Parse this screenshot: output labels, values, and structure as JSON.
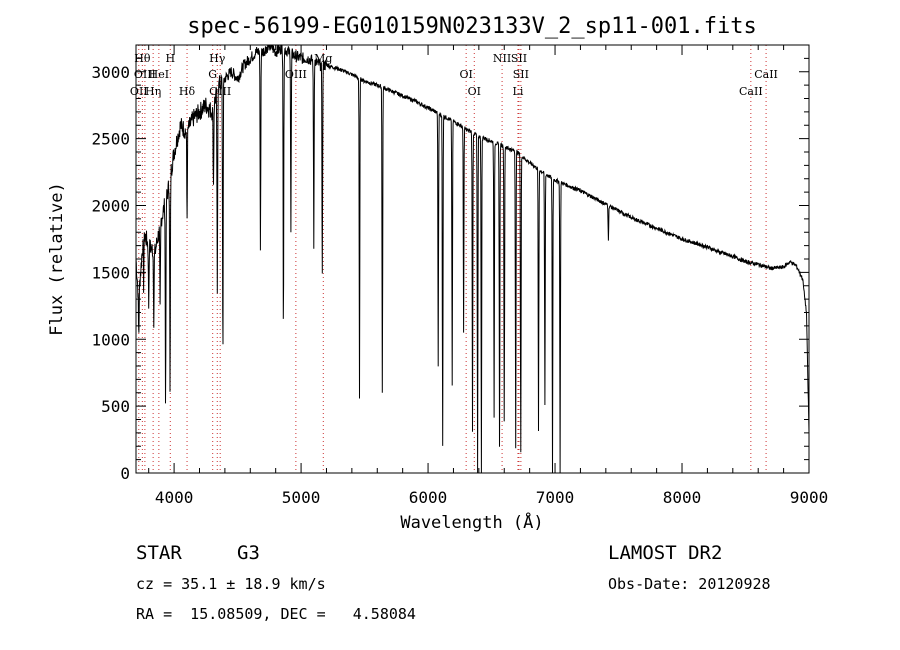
{
  "chart_data": {
    "type": "line",
    "title": "spec-56199-EG010159N023133V_2_sp11-001.fits",
    "xlabel": "Wavelength (Å)",
    "ylabel": "Flux (relative)",
    "xlim": [
      3700,
      9000
    ],
    "ylim": [
      0,
      3200
    ],
    "xticks": [
      4000,
      5000,
      6000,
      7000,
      8000,
      9000
    ],
    "yticks": [
      0,
      500,
      1000,
      1500,
      2000,
      2500,
      3000
    ],
    "xtick_labels": [
      "4000",
      "5000",
      "6000",
      "7000",
      "8000",
      "9000"
    ],
    "ytick_labels": [
      "0",
      "500",
      "1000",
      "1500",
      "2000",
      "2500",
      "3000"
    ],
    "grid": false,
    "continuum": [
      [
        3700,
        1600
      ],
      [
        3720,
        1300
      ],
      [
        3760,
        1800
      ],
      [
        3800,
        1700
      ],
      [
        3850,
        1650
      ],
      [
        3900,
        1900
      ],
      [
        3950,
        2100
      ],
      [
        4000,
        2400
      ],
      [
        4050,
        2600
      ],
      [
        4100,
        2550
      ],
      [
        4150,
        2650
      ],
      [
        4200,
        2700
      ],
      [
        4250,
        2750
      ],
      [
        4300,
        2700
      ],
      [
        4350,
        2900
      ],
      [
        4400,
        2950
      ],
      [
        4450,
        3000
      ],
      [
        4500,
        2950
      ],
      [
        4550,
        3050
      ],
      [
        4600,
        3100
      ],
      [
        4650,
        3150
      ],
      [
        4700,
        3150
      ],
      [
        4750,
        3200
      ],
      [
        4800,
        3150
      ],
      [
        4850,
        3180
      ],
      [
        4900,
        3150
      ],
      [
        4950,
        3120
      ],
      [
        5000,
        3100
      ],
      [
        5050,
        3100
      ],
      [
        5100,
        3080
      ],
      [
        5150,
        3050
      ],
      [
        5200,
        3050
      ],
      [
        5300,
        3020
      ],
      [
        5400,
        2980
      ],
      [
        5500,
        2930
      ],
      [
        5600,
        2900
      ],
      [
        5700,
        2860
      ],
      [
        5800,
        2820
      ],
      [
        5900,
        2780
      ],
      [
        6000,
        2730
      ],
      [
        6100,
        2680
      ],
      [
        6200,
        2630
      ],
      [
        6300,
        2570
      ],
      [
        6400,
        2520
      ],
      [
        6500,
        2480
      ],
      [
        6600,
        2440
      ],
      [
        6700,
        2400
      ],
      [
        6800,
        2320
      ],
      [
        6900,
        2250
      ],
      [
        7000,
        2190
      ],
      [
        7100,
        2150
      ],
      [
        7200,
        2110
      ],
      [
        7300,
        2060
      ],
      [
        7400,
        2010
      ],
      [
        7500,
        1960
      ],
      [
        7600,
        1910
      ],
      [
        7700,
        1870
      ],
      [
        7800,
        1830
      ],
      [
        7900,
        1790
      ],
      [
        8000,
        1750
      ],
      [
        8100,
        1720
      ],
      [
        8200,
        1690
      ],
      [
        8300,
        1650
      ],
      [
        8400,
        1620
      ],
      [
        8500,
        1580
      ],
      [
        8600,
        1560
      ],
      [
        8700,
        1530
      ],
      [
        8800,
        1540
      ],
      [
        8850,
        1580
      ],
      [
        8900,
        1550
      ],
      [
        8950,
        1450
      ],
      [
        8980,
        1200
      ],
      [
        9000,
        300
      ]
    ],
    "absorption_lines": [
      {
        "x": 3722,
        "min": 1050
      },
      {
        "x": 3760,
        "min": 1400
      },
      {
        "x": 3800,
        "min": 1250
      },
      {
        "x": 3840,
        "min": 1150
      },
      {
        "x": 3890,
        "min": 1200
      },
      {
        "x": 3933,
        "min": 500
      },
      {
        "x": 3968,
        "min": 550
      },
      {
        "x": 4102,
        "min": 1900
      },
      {
        "x": 4310,
        "min": 2150
      },
      {
        "x": 4340,
        "min": 1300
      },
      {
        "x": 4384,
        "min": 850
      },
      {
        "x": 4680,
        "min": 1700
      },
      {
        "x": 4861,
        "min": 1000
      },
      {
        "x": 4920,
        "min": 1800
      },
      {
        "x": 5100,
        "min": 1700
      },
      {
        "x": 5167,
        "min": 1500
      },
      {
        "x": 5460,
        "min": 550
      },
      {
        "x": 5640,
        "min": 600
      },
      {
        "x": 6080,
        "min": 800
      },
      {
        "x": 6115,
        "min": 200
      },
      {
        "x": 6190,
        "min": 650
      },
      {
        "x": 6280,
        "min": 1050
      },
      {
        "x": 6350,
        "min": 300
      },
      {
        "x": 6390,
        "min": 0
      },
      {
        "x": 6420,
        "min": 0
      },
      {
        "x": 6520,
        "min": 400
      },
      {
        "x": 6563,
        "min": 150
      },
      {
        "x": 6600,
        "min": 400
      },
      {
        "x": 6690,
        "min": 200
      },
      {
        "x": 6730,
        "min": 150
      },
      {
        "x": 6870,
        "min": 300
      },
      {
        "x": 6920,
        "min": 500
      },
      {
        "x": 6980,
        "min": 0
      },
      {
        "x": 7040,
        "min": 0
      },
      {
        "x": 7420,
        "min": 1750
      }
    ],
    "marker_lines": [
      {
        "x": 3722,
        "label": "OII",
        "row": 3
      },
      {
        "x": 3750,
        "label": "Hθ",
        "row": 1
      },
      {
        "x": 3770,
        "label": "OIII",
        "row": 2
      },
      {
        "x": 3835,
        "label": "Hη",
        "row": 3
      },
      {
        "x": 3880,
        "label": "HeI",
        "row": 2
      },
      {
        "x": 3970,
        "label": "H",
        "row": 1
      },
      {
        "x": 4102,
        "label": "Hδ",
        "row": 3
      },
      {
        "x": 4340,
        "label": "Hγ",
        "row": 1
      },
      {
        "x": 4304,
        "label": "G",
        "row": 2
      },
      {
        "x": 4363,
        "label": "OIII",
        "row": 3
      },
      {
        "x": 4959,
        "label": "OIII",
        "row": 2
      },
      {
        "x": 5175,
        "label": "Mg",
        "row": 1
      },
      {
        "x": 6300,
        "label": "OI",
        "row": 2
      },
      {
        "x": 6364,
        "label": "OI",
        "row": 3
      },
      {
        "x": 6583,
        "label": "NII",
        "row": 1
      },
      {
        "x": 6716,
        "label": "SII",
        "row": 1
      },
      {
        "x": 6731,
        "label": "SII",
        "row": 2
      },
      {
        "x": 6708,
        "label": "Li",
        "row": 3
      },
      {
        "x": 8542,
        "label": "CaII",
        "row": 3
      },
      {
        "x": 8662,
        "label": "CaII",
        "row": 2
      }
    ],
    "marker_color": "#cc3333"
  },
  "info": {
    "object_class": "STAR",
    "subclass": "G3",
    "redshift": "cz = 35.1 ± 18.9 km/s",
    "coords": "RA =  15.08509, DEC =   4.58084",
    "survey": "LAMOST DR2",
    "obs_date": "Obs-Date: 20120928"
  }
}
